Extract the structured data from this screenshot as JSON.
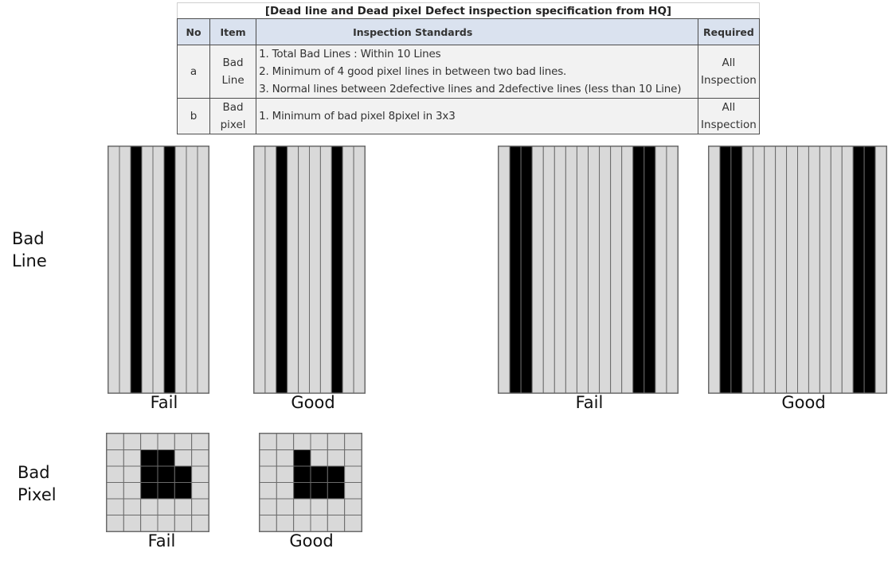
{
  "table": {
    "title": "[Dead line and Dead pixel Defect inspection specification from HQ]",
    "headers": {
      "no": "No",
      "item": "Item",
      "standards": "Inspection Standards",
      "required": "Required"
    },
    "rows": [
      {
        "no": "a",
        "item_line1": "Bad",
        "item_line2": "Line",
        "standards": [
          "1. Total Bad Lines : Within 10 Lines",
          "2. Minimum of 4 good pixel lines in between two bad lines.",
          "3. Normal lines between 2defective lines and 2defective lines (less than 10 Line)"
        ],
        "required_line1": "All",
        "required_line2": "Inspection"
      },
      {
        "no": "b",
        "item_line1": "Bad",
        "item_line2": "pixel",
        "standards": [
          "1. Minimum of bad pixel 8pixel in 3x3"
        ],
        "required_line1": "All",
        "required_line2": "Inspection"
      }
    ]
  },
  "labels": {
    "bad_line": [
      "Bad",
      "Line"
    ],
    "bad_pixel": [
      "Bad",
      "Pixel"
    ]
  },
  "line_panels": [
    {
      "caption": "Fail",
      "columns": 9,
      "bad_columns": [
        2,
        5
      ]
    },
    {
      "caption": "Good",
      "columns": 10,
      "bad_columns": [
        2,
        7
      ]
    },
    {
      "caption": "Fail",
      "columns": 16,
      "bad_columns": [
        1,
        2,
        12,
        13
      ]
    },
    {
      "caption": "Good",
      "columns": 16,
      "bad_columns": [
        1,
        2,
        13,
        14
      ]
    }
  ],
  "pixel_panels": [
    {
      "caption": "Fail",
      "columns": 6,
      "rows": 6,
      "bad_cells": [
        [
          2,
          1
        ],
        [
          3,
          1
        ],
        [
          2,
          2
        ],
        [
          3,
          2
        ],
        [
          4,
          2
        ],
        [
          2,
          3
        ],
        [
          3,
          3
        ],
        [
          4,
          3
        ]
      ]
    },
    {
      "caption": "Good",
      "columns": 6,
      "rows": 6,
      "bad_cells": [
        [
          2,
          1
        ],
        [
          2,
          2
        ],
        [
          3,
          2
        ],
        [
          4,
          2
        ],
        [
          2,
          3
        ],
        [
          3,
          3
        ],
        [
          4,
          3
        ]
      ]
    }
  ],
  "colors": {
    "good_pixel": "#d9d9d9",
    "bad_pixel": "#000000",
    "grid": "#6b6b6b",
    "header_bg": "#dae2ef",
    "row_bg": "#f2f2f2"
  }
}
